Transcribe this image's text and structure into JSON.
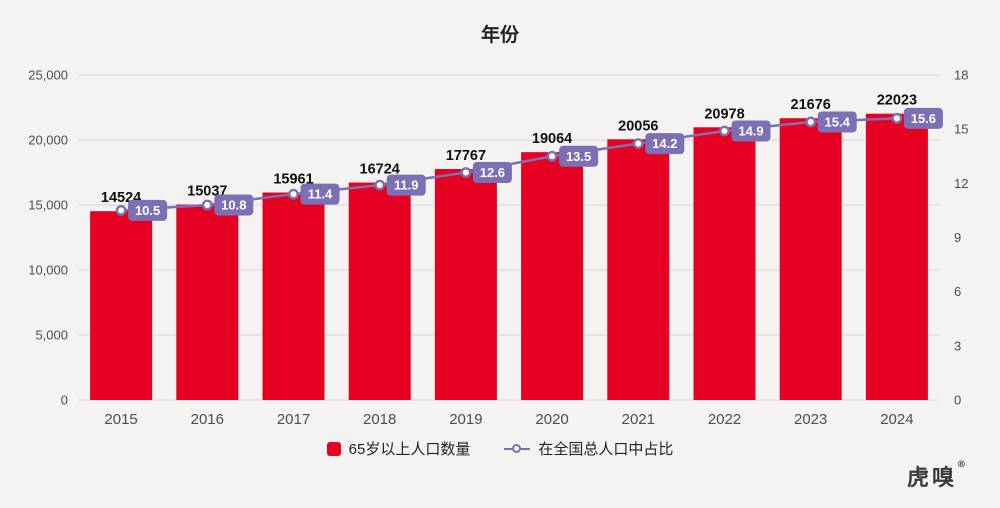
{
  "legend": [
    {
      "label": "65岁以上人口数量",
      "series_type": "bar"
    },
    {
      "label": "在全国总人口中占比",
      "series_type": "line"
    }
  ],
  "logo": {
    "text": "虎嗅",
    "mark": "®"
  },
  "colors": {
    "background": "#f4f3f1",
    "bar": "#e60021",
    "line": "#7d6fb3",
    "grid": "#d8d6d3",
    "axis_text": "#4d4d4d",
    "value_text": "#111111",
    "percent_label_bg": "#7d6fb3",
    "percent_label_text": "#ffffff",
    "title_text": "#1f1f1f"
  },
  "chart_data": {
    "type": "bar+line",
    "title": "年份",
    "categories": [
      "2015",
      "2016",
      "2017",
      "2018",
      "2019",
      "2020",
      "2021",
      "2022",
      "2023",
      "2024"
    ],
    "series": [
      {
        "name": "65岁以上人口数量",
        "type": "bar",
        "axis": "left",
        "values": [
          14524,
          15037,
          15961,
          16724,
          17767,
          19064,
          20056,
          20978,
          21676,
          22023
        ]
      },
      {
        "name": "在全国总人口中占比",
        "type": "line",
        "axis": "right",
        "values": [
          10.5,
          10.8,
          11.4,
          11.9,
          12.6,
          13.5,
          14.2,
          14.9,
          15.4,
          15.6
        ]
      }
    ],
    "left_axis": {
      "min": 0,
      "max": 25000,
      "step": 5000,
      "tick_labels": [
        "0",
        "5,000",
        "10,000",
        "15,000",
        "20,000",
        "25,000"
      ]
    },
    "right_axis": {
      "min": 0,
      "max": 18,
      "step": 3,
      "tick_labels": [
        "0",
        "3",
        "6",
        "9",
        "12",
        "15",
        "18"
      ]
    },
    "grid": "horizontal",
    "legend_position": "bottom"
  }
}
